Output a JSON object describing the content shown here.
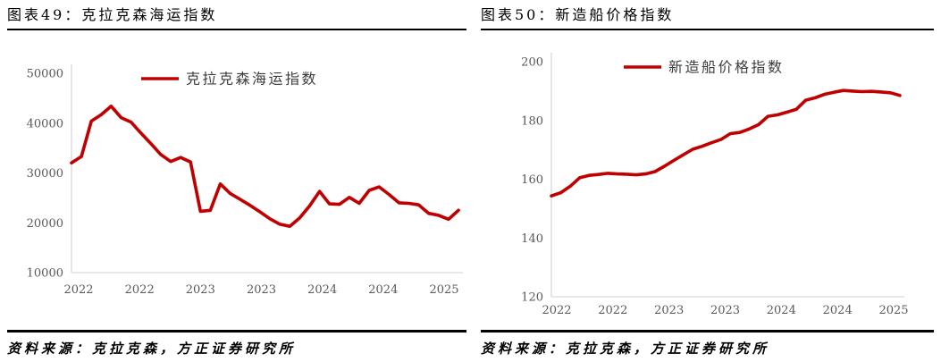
{
  "page": {
    "background": "#ffffff"
  },
  "colors": {
    "series_red": "#c00000",
    "axis_line": "#d9d9d9",
    "tick_text": "#595959",
    "legend_text": "#3d3d3d",
    "title_text": "#000000",
    "rule_black": "#000000"
  },
  "chart_data": [
    {
      "type": "line",
      "title": "图表49：克拉克森海运指数",
      "legend": "克拉克森海运指数",
      "legend_position": "top-center",
      "grid": false,
      "x_tick_labels": [
        "2022",
        "2022",
        "2023",
        "2023",
        "2024",
        "2024",
        "2025"
      ],
      "x_range": "2022–2025",
      "ylim": [
        10000,
        50000
      ],
      "yticks": [
        10000,
        20000,
        30000,
        40000,
        50000
      ],
      "line_color": "#c00000",
      "series": [
        {
          "name": "克拉克森海运指数",
          "values": [
            32000,
            33300,
            40400,
            41700,
            43400,
            41100,
            40200,
            38000,
            35900,
            33700,
            32300,
            33100,
            32200,
            22300,
            22500,
            27800,
            25900,
            24700,
            23500,
            22200,
            20800,
            19700,
            19300,
            21000,
            23400,
            26300,
            23800,
            23700,
            25100,
            23900,
            26500,
            27200,
            25700,
            24000,
            23900,
            23600,
            21900,
            21500,
            20700,
            22500
          ]
        }
      ],
      "source": "资料来源：克拉克森，方正证券研究所"
    },
    {
      "type": "line",
      "title": "图表50：新造船价格指数",
      "legend": "新造船价格指数",
      "legend_position": "top-center",
      "grid": false,
      "x_tick_labels": [
        "2022",
        "2022",
        "2023",
        "2023",
        "2024",
        "2024",
        "2025"
      ],
      "x_range": "2022–2025",
      "ylim": [
        120,
        200
      ],
      "yticks": [
        120,
        140,
        160,
        180,
        200
      ],
      "line_color": "#c00000",
      "series": [
        {
          "name": "新造船价格指数",
          "values": [
            154.3,
            155.4,
            157.6,
            160.5,
            161.3,
            161.6,
            162.0,
            161.8,
            161.7,
            161.5,
            161.8,
            162.6,
            164.4,
            166.4,
            168.3,
            170.2,
            171.2,
            172.4,
            173.5,
            175.5,
            175.9,
            177.1,
            178.6,
            181.4,
            181.9,
            182.8,
            183.8,
            186.9,
            187.7,
            188.9,
            189.6,
            190.2,
            190.0,
            189.8,
            189.9,
            189.7,
            189.4,
            188.5
          ]
        }
      ],
      "source": "资料来源：克拉克森，方正证券研究所"
    }
  ]
}
